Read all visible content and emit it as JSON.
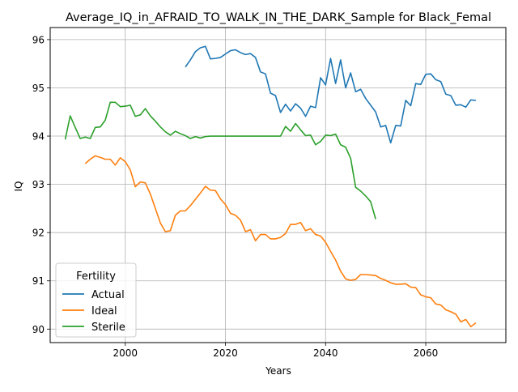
{
  "chart_data": {
    "type": "line",
    "title": "Average_IQ_in_AFRAID_TO_WALK_IN_THE_DARK_Sample for Black_Femal",
    "xlabel": "Years",
    "ylabel": "IQ",
    "xlim": [
      1985,
      2076
    ],
    "ylim": [
      89.72,
      96.25
    ],
    "grid": true,
    "x_ticks": [
      2000,
      2020,
      2040,
      2060
    ],
    "y_ticks": [
      90,
      91,
      92,
      93,
      94,
      95,
      96
    ],
    "legend": {
      "title": "Fertility",
      "placement": "lower-left"
    },
    "series": [
      {
        "name": "Actual",
        "color": "#1f77b4",
        "x": [
          2012,
          2013,
          2014,
          2015,
          2016,
          2017,
          2018,
          2019,
          2020,
          2021,
          2022,
          2023,
          2024,
          2025,
          2026,
          2027,
          2028,
          2029,
          2030,
          2031,
          2032,
          2033,
          2034,
          2035,
          2036,
          2037,
          2038,
          2039,
          2040,
          2041,
          2042,
          2043,
          2044,
          2045,
          2046,
          2047,
          2048,
          2049,
          2050,
          2051,
          2052,
          2053,
          2054,
          2055,
          2056,
          2057,
          2058,
          2059,
          2060,
          2061,
          2062,
          2063,
          2064,
          2065,
          2066,
          2067,
          2068,
          2069,
          2070
        ],
        "y": [
          95.43,
          95.58,
          95.75,
          95.83,
          95.86,
          95.6,
          95.61,
          95.63,
          95.7,
          95.77,
          95.79,
          95.73,
          95.69,
          95.71,
          95.63,
          95.33,
          95.29,
          94.89,
          94.84,
          94.49,
          94.66,
          94.52,
          94.67,
          94.58,
          94.41,
          94.62,
          94.59,
          95.21,
          95.06,
          95.61,
          95.09,
          95.58,
          95.0,
          95.31,
          94.92,
          94.97,
          94.78,
          94.64,
          94.5,
          94.19,
          94.22,
          93.86,
          94.22,
          94.21,
          94.74,
          94.63,
          95.09,
          95.07,
          95.28,
          95.29,
          95.17,
          95.13,
          94.87,
          94.84,
          94.64,
          94.65,
          94.6,
          94.75,
          94.74
        ]
      },
      {
        "name": "Ideal",
        "color": "#ff7f0e",
        "x": [
          1992,
          1993,
          1994,
          1995,
          1996,
          1997,
          1998,
          1999,
          2000,
          2001,
          2002,
          2003,
          2004,
          2005,
          2006,
          2007,
          2008,
          2009,
          2010,
          2011,
          2012,
          2013,
          2014,
          2015,
          2016,
          2017,
          2018,
          2019,
          2020,
          2021,
          2022,
          2023,
          2024,
          2025,
          2026,
          2027,
          2028,
          2029,
          2030,
          2031,
          2032,
          2033,
          2034,
          2035,
          2036,
          2037,
          2038,
          2039,
          2040,
          2041,
          2042,
          2043,
          2044,
          2045,
          2046,
          2047,
          2048,
          2049,
          2050,
          2051,
          2052,
          2053,
          2054,
          2055,
          2056,
          2057,
          2058,
          2059,
          2060,
          2061,
          2062,
          2063,
          2064,
          2065,
          2066,
          2067,
          2068,
          2069,
          2070
        ],
        "y": [
          93.43,
          93.52,
          93.59,
          93.56,
          93.52,
          93.52,
          93.4,
          93.55,
          93.47,
          93.3,
          92.95,
          93.05,
          93.03,
          92.8,
          92.5,
          92.2,
          92.02,
          92.04,
          92.36,
          92.45,
          92.45,
          92.56,
          92.69,
          92.82,
          92.96,
          92.88,
          92.87,
          92.7,
          92.58,
          92.4,
          92.36,
          92.26,
          92.02,
          92.06,
          91.83,
          91.96,
          91.96,
          91.87,
          91.87,
          91.9,
          91.98,
          92.17,
          92.17,
          92.21,
          92.04,
          92.08,
          91.96,
          91.93,
          91.8,
          91.61,
          91.43,
          91.2,
          91.04,
          91.01,
          91.03,
          91.13,
          91.13,
          91.12,
          91.11,
          91.05,
          91.01,
          90.96,
          90.93,
          90.93,
          90.94,
          90.87,
          90.86,
          90.71,
          90.67,
          90.65,
          90.52,
          90.5,
          90.4,
          90.36,
          90.31,
          90.15,
          90.2,
          90.05,
          90.13
        ]
      },
      {
        "name": "Sterile",
        "color": "#2ca02c",
        "x": [
          1988,
          1989,
          1990,
          1991,
          1992,
          1993,
          1994,
          1995,
          1996,
          1997,
          1998,
          1999,
          2000,
          2001,
          2002,
          2003,
          2004,
          2005,
          2006,
          2007,
          2008,
          2009,
          2010,
          2011,
          2012,
          2013,
          2014,
          2015,
          2016,
          2017,
          2018,
          2019,
          2020,
          2021,
          2022,
          2023,
          2024,
          2025,
          2026,
          2027,
          2028,
          2029,
          2030,
          2031,
          2032,
          2033,
          2034,
          2035,
          2036,
          2037,
          2038,
          2039,
          2040,
          2041,
          2042,
          2043,
          2044,
          2045,
          2046,
          2047,
          2048,
          2049,
          2050
        ],
        "y": [
          93.93,
          94.42,
          94.18,
          93.95,
          93.98,
          93.95,
          94.18,
          94.19,
          94.33,
          94.7,
          94.7,
          94.61,
          94.62,
          94.64,
          94.41,
          94.44,
          94.57,
          94.42,
          94.31,
          94.19,
          94.09,
          94.02,
          94.1,
          94.05,
          94.01,
          93.95,
          93.99,
          93.96,
          93.99,
          94.0,
          94.0,
          94.0,
          94.0,
          94.0,
          94.0,
          94.0,
          94.0,
          94.0,
          94.0,
          94.0,
          94.0,
          94.0,
          94.0,
          94.0,
          94.2,
          94.1,
          94.26,
          94.13,
          94.01,
          94.02,
          93.82,
          93.89,
          94.02,
          94.01,
          94.04,
          93.82,
          93.77,
          93.54,
          92.94,
          92.86,
          92.76,
          92.64,
          92.28
        ]
      }
    ]
  }
}
